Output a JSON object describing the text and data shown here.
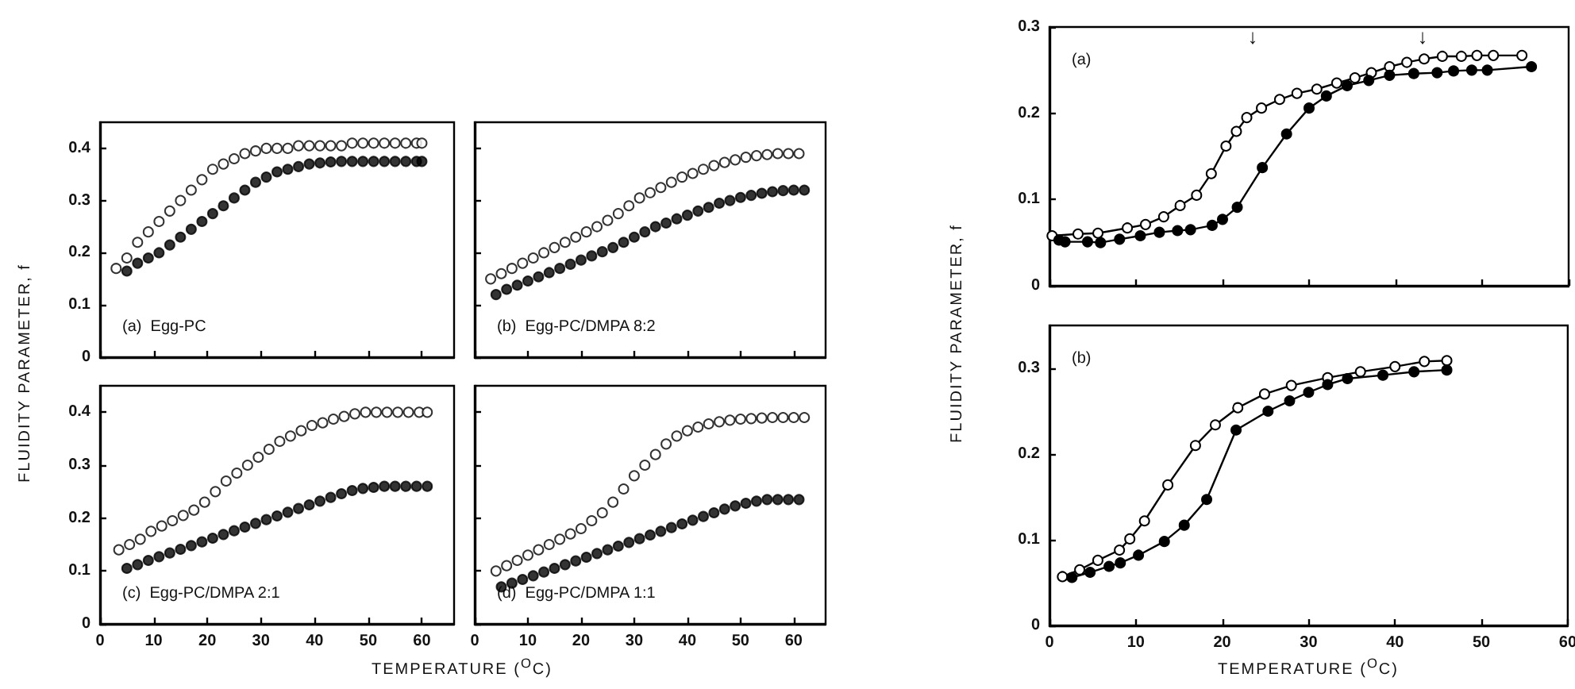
{
  "chart_data": [
    {
      "type": "scatter",
      "annotations": [
        "(a)  Egg-PC"
      ],
      "xlim": [
        0,
        66
      ],
      "ylim": [
        0,
        0.45
      ],
      "xticks": [
        0,
        10,
        20,
        30,
        40,
        50,
        60
      ],
      "yticks": [
        0,
        0.1,
        0.2,
        0.3,
        0.4
      ],
      "tick_labels": "y",
      "grid": false,
      "marker": "circle",
      "series": [
        {
          "color": "#ffffff",
          "x": [
            3,
            5,
            7,
            9,
            11,
            13,
            15,
            17,
            19,
            21,
            23,
            25,
            27,
            29,
            31,
            33,
            35,
            37,
            39,
            41,
            43,
            45,
            47,
            49,
            51,
            53,
            55,
            57,
            59,
            60
          ],
          "values": [
            0.17,
            0.19,
            0.22,
            0.24,
            0.26,
            0.28,
            0.3,
            0.32,
            0.34,
            0.36,
            0.37,
            0.38,
            0.39,
            0.395,
            0.4,
            0.4,
            0.4,
            0.405,
            0.405,
            0.405,
            0.405,
            0.405,
            0.41,
            0.41,
            0.41,
            0.41,
            0.41,
            0.41,
            0.41,
            0.41
          ]
        },
        {
          "color": "#000000",
          "x": [
            5,
            7,
            9,
            11,
            13,
            15,
            17,
            19,
            21,
            23,
            25,
            27,
            29,
            31,
            33,
            35,
            37,
            39,
            41,
            43,
            45,
            47,
            49,
            51,
            53,
            55,
            57,
            59,
            60
          ],
          "values": [
            0.165,
            0.18,
            0.19,
            0.2,
            0.215,
            0.23,
            0.245,
            0.26,
            0.275,
            0.29,
            0.305,
            0.32,
            0.335,
            0.345,
            0.355,
            0.36,
            0.365,
            0.37,
            0.372,
            0.374,
            0.375,
            0.375,
            0.375,
            0.375,
            0.375,
            0.375,
            0.375,
            0.375,
            0.375
          ]
        }
      ]
    },
    {
      "type": "scatter",
      "annotations": [
        "(b)  Egg-PC/DMPA 8:2"
      ],
      "xlim": [
        0,
        66
      ],
      "ylim": [
        0,
        0.45
      ],
      "xticks": [
        0,
        10,
        20,
        30,
        40,
        50,
        60
      ],
      "yticks": [
        0,
        0.1,
        0.2,
        0.3,
        0.4
      ],
      "tick_labels": false,
      "grid": false,
      "marker": "circle",
      "series": [
        {
          "color": "#ffffff",
          "x": [
            3,
            5,
            7,
            9,
            11,
            13,
            15,
            17,
            19,
            21,
            23,
            25,
            27,
            29,
            31,
            33,
            35,
            37,
            39,
            41,
            43,
            45,
            47,
            49,
            51,
            53,
            55,
            57,
            59,
            61
          ],
          "values": [
            0.15,
            0.16,
            0.17,
            0.18,
            0.19,
            0.2,
            0.21,
            0.22,
            0.23,
            0.24,
            0.25,
            0.262,
            0.275,
            0.29,
            0.305,
            0.315,
            0.325,
            0.335,
            0.345,
            0.352,
            0.36,
            0.367,
            0.373,
            0.378,
            0.383,
            0.386,
            0.388,
            0.39,
            0.39,
            0.39
          ]
        },
        {
          "color": "#000000",
          "x": [
            4,
            6,
            8,
            10,
            12,
            14,
            16,
            18,
            20,
            22,
            24,
            26,
            28,
            30,
            32,
            34,
            36,
            38,
            40,
            42,
            44,
            46,
            48,
            50,
            52,
            54,
            56,
            58,
            60,
            62
          ],
          "values": [
            0.12,
            0.13,
            0.138,
            0.146,
            0.154,
            0.162,
            0.17,
            0.178,
            0.186,
            0.194,
            0.202,
            0.21,
            0.22,
            0.23,
            0.24,
            0.25,
            0.257,
            0.265,
            0.272,
            0.28,
            0.287,
            0.295,
            0.3,
            0.306,
            0.31,
            0.314,
            0.317,
            0.319,
            0.32,
            0.32
          ]
        }
      ]
    },
    {
      "type": "scatter",
      "annotations": [
        "(c)  Egg-PC/DMPA 2:1"
      ],
      "xlabel": "TEMPERATURE ($^{O}$C)",
      "ylabel": "FLUIDITY PARAMETER, f",
      "xlim": [
        0,
        66
      ],
      "ylim": [
        0,
        0.45
      ],
      "xticks": [
        0,
        10,
        20,
        30,
        40,
        50,
        60
      ],
      "yticks": [
        0,
        0.1,
        0.2,
        0.3,
        0.4
      ],
      "grid": false,
      "marker": "circle",
      "series": [
        {
          "color": "#ffffff",
          "x": [
            3.5,
            5.5,
            7.5,
            9.5,
            11.5,
            13.5,
            15.5,
            17.5,
            19.5,
            21.5,
            23.5,
            25.5,
            27.5,
            29.5,
            31.5,
            33.5,
            35.5,
            37.5,
            39.5,
            41.5,
            43.5,
            45.5,
            47.5,
            49.5,
            51.5,
            53.5,
            55.5,
            57.5,
            59.5,
            61
          ],
          "values": [
            0.14,
            0.15,
            0.16,
            0.175,
            0.185,
            0.195,
            0.205,
            0.215,
            0.23,
            0.25,
            0.27,
            0.285,
            0.3,
            0.315,
            0.33,
            0.345,
            0.355,
            0.365,
            0.375,
            0.38,
            0.387,
            0.392,
            0.397,
            0.4,
            0.4,
            0.4,
            0.4,
            0.4,
            0.4,
            0.4
          ]
        },
        {
          "color": "#000000",
          "x": [
            5,
            7,
            9,
            11,
            13,
            15,
            17,
            19,
            21,
            23,
            25,
            27,
            29,
            31,
            33,
            35,
            37,
            39,
            41,
            43,
            45,
            47,
            49,
            51,
            53,
            55,
            57,
            59,
            61
          ],
          "values": [
            0.105,
            0.112,
            0.12,
            0.127,
            0.134,
            0.141,
            0.148,
            0.155,
            0.162,
            0.169,
            0.176,
            0.183,
            0.19,
            0.197,
            0.204,
            0.211,
            0.218,
            0.225,
            0.232,
            0.239,
            0.246,
            0.252,
            0.256,
            0.258,
            0.26,
            0.26,
            0.26,
            0.26,
            0.26
          ]
        }
      ]
    },
    {
      "type": "scatter",
      "annotations": [
        "(d)  Egg-PC/DMPA 1:1"
      ],
      "xlim": [
        0,
        66
      ],
      "ylim": [
        0,
        0.45
      ],
      "xticks": [
        0,
        10,
        20,
        30,
        40,
        50,
        60
      ],
      "yticks": [
        0,
        0.1,
        0.2,
        0.3,
        0.4
      ],
      "tick_labels": "x",
      "grid": false,
      "marker": "circle",
      "series": [
        {
          "color": "#ffffff",
          "x": [
            4,
            6,
            8,
            10,
            12,
            14,
            16,
            18,
            20,
            22,
            24,
            26,
            28,
            30,
            32,
            34,
            36,
            38,
            40,
            42,
            44,
            46,
            48,
            50,
            52,
            54,
            56,
            58,
            60,
            62
          ],
          "values": [
            0.1,
            0.11,
            0.12,
            0.13,
            0.14,
            0.15,
            0.16,
            0.17,
            0.18,
            0.195,
            0.21,
            0.23,
            0.255,
            0.28,
            0.3,
            0.32,
            0.34,
            0.355,
            0.365,
            0.372,
            0.378,
            0.382,
            0.385,
            0.387,
            0.388,
            0.389,
            0.39,
            0.39,
            0.39,
            0.39
          ]
        },
        {
          "color": "#000000",
          "x": [
            5,
            7,
            9,
            11,
            13,
            15,
            17,
            19,
            21,
            23,
            25,
            27,
            29,
            31,
            33,
            35,
            37,
            39,
            41,
            43,
            45,
            47,
            49,
            51,
            53,
            55,
            57,
            59,
            61
          ],
          "values": [
            0.07,
            0.077,
            0.084,
            0.091,
            0.098,
            0.105,
            0.112,
            0.119,
            0.126,
            0.133,
            0.14,
            0.147,
            0.154,
            0.161,
            0.168,
            0.175,
            0.182,
            0.189,
            0.196,
            0.203,
            0.21,
            0.217,
            0.223,
            0.228,
            0.232,
            0.235,
            0.235,
            0.235,
            0.235
          ]
        }
      ]
    },
    {
      "type": "line",
      "annotations": [
        "(a)",
        "↓",
        "↓"
      ],
      "xlim": [
        0,
        60
      ],
      "ylim": [
        0,
        0.3
      ],
      "xticks": [
        0,
        10,
        20,
        30,
        40,
        50,
        60
      ],
      "yticks": [
        0,
        0.1,
        0.2,
        0.3
      ],
      "tick_labels": "y",
      "grid": false,
      "marker": "circle",
      "line_style": "solid",
      "series": [
        {
          "color": "#ffffff",
          "x": [
            0.3,
            3.3,
            5.6,
            9,
            11.1,
            13.2,
            15.1,
            17,
            18.7,
            20.4,
            21.6,
            22.8,
            24.5,
            26.6,
            28.6,
            30.9,
            33.2,
            35.3,
            37.2,
            39.3,
            41.3,
            43.3,
            45.4,
            47.6,
            49.4,
            51.3,
            54.6
          ],
          "values": [
            0.058,
            0.06,
            0.061,
            0.067,
            0.071,
            0.08,
            0.093,
            0.105,
            0.13,
            0.162,
            0.179,
            0.195,
            0.206,
            0.216,
            0.223,
            0.228,
            0.235,
            0.241,
            0.247,
            0.254,
            0.259,
            0.263,
            0.266,
            0.266,
            0.267,
            0.267,
            0.267
          ]
        },
        {
          "color": "#000000",
          "x": [
            1.1,
            1.8,
            4.4,
            5.9,
            8.1,
            10.5,
            12.7,
            14.8,
            16.3,
            18.8,
            20,
            21.7,
            24.6,
            27.4,
            30,
            32,
            34.4,
            36.9,
            39.3,
            42.1,
            44.8,
            46.7,
            48.8,
            50.6,
            55.7
          ],
          "values": [
            0.053,
            0.051,
            0.051,
            0.05,
            0.054,
            0.058,
            0.062,
            0.064,
            0.065,
            0.07,
            0.077,
            0.091,
            0.137,
            0.176,
            0.206,
            0.22,
            0.232,
            0.238,
            0.244,
            0.246,
            0.247,
            0.249,
            0.25,
            0.25,
            0.254
          ]
        }
      ]
    },
    {
      "type": "line",
      "annotations": [
        "(b)"
      ],
      "xlabel": "TEMPERATURE ($^{O}$C)",
      "ylabel": "FLUIDITY PARAMETER, f",
      "xlim": [
        0,
        60
      ],
      "ylim": [
        0,
        0.35
      ],
      "xticks": [
        0,
        10,
        20,
        30,
        40,
        50,
        60
      ],
      "yticks": [
        0,
        0.1,
        0.2,
        0.3
      ],
      "grid": false,
      "marker": "circle",
      "line_style": "solid",
      "series": [
        {
          "color": "#ffffff",
          "x": [
            1.5,
            3.5,
            5.6,
            8.1,
            9.3,
            11,
            13.7,
            16.9,
            19.2,
            21.8,
            24.9,
            28,
            32.2,
            36,
            40,
            43.4,
            46
          ],
          "values": [
            0.057,
            0.065,
            0.076,
            0.088,
            0.101,
            0.122,
            0.164,
            0.21,
            0.234,
            0.254,
            0.27,
            0.28,
            0.289,
            0.296,
            0.302,
            0.308,
            0.309
          ]
        },
        {
          "color": "#000000",
          "x": [
            2.6,
            4.7,
            6.9,
            8.2,
            10.3,
            13.3,
            15.6,
            18.2,
            21.6,
            25.3,
            27.8,
            30,
            32.2,
            34.5,
            38.6,
            42.2,
            46
          ],
          "values": [
            0.056,
            0.062,
            0.069,
            0.073,
            0.082,
            0.098,
            0.117,
            0.147,
            0.228,
            0.25,
            0.262,
            0.272,
            0.281,
            0.288,
            0.292,
            0.296,
            0.298
          ]
        }
      ]
    }
  ]
}
